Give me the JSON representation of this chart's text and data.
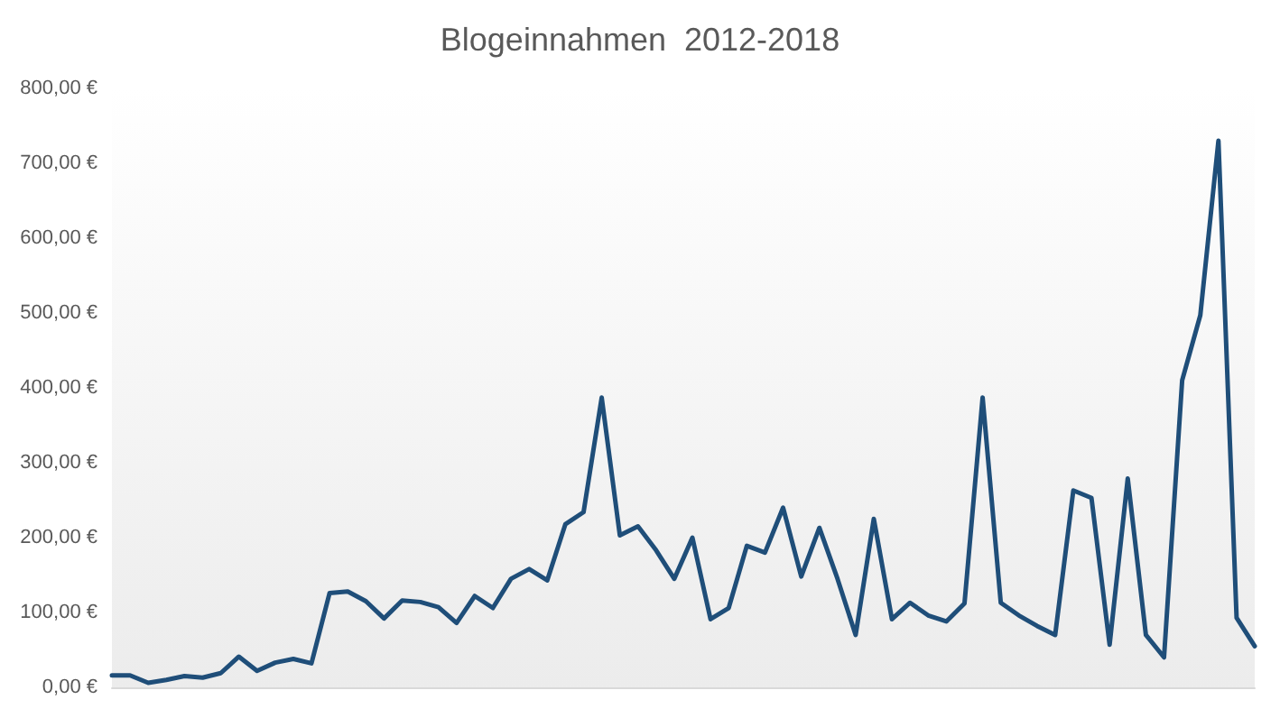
{
  "chart_data": {
    "type": "line",
    "title": "Blogeinnahmen  2012-2018",
    "categories": [
      null,
      null,
      null,
      null,
      null,
      null,
      null,
      null,
      null,
      null,
      null,
      null,
      null,
      null,
      null,
      null,
      null,
      null,
      null,
      null,
      null,
      null,
      null,
      null,
      null,
      null,
      null,
      null,
      null,
      null,
      null,
      null,
      null,
      null,
      null,
      null,
      null,
      null,
      null,
      null,
      null,
      null,
      null,
      null,
      null,
      null,
      null,
      null,
      null,
      null,
      null,
      null,
      null,
      null,
      null,
      null,
      null,
      null,
      null,
      null,
      null,
      null,
      null,
      null
    ],
    "series": [
      {
        "color": "#1f4e79",
        "values": [
          16,
          16,
          6,
          10,
          15,
          13,
          19,
          41,
          22,
          33,
          38,
          32,
          126,
          128,
          115,
          92,
          116,
          114,
          107,
          86,
          122,
          106,
          145,
          158,
          143,
          218,
          234,
          387,
          203,
          215,
          183,
          145,
          200,
          91,
          106,
          189,
          180,
          240,
          148,
          213,
          145,
          70,
          225,
          91,
          113,
          96,
          88,
          112,
          387,
          113,
          96,
          82,
          70,
          263,
          253,
          57,
          279,
          70,
          40,
          410,
          497,
          730,
          93,
          55
        ]
      }
    ],
    "ylim": [
      0,
      800
    ],
    "yticks": [
      {
        "value": 0,
        "label": "0,00 €"
      },
      {
        "value": 100,
        "label": "100,00 €"
      },
      {
        "value": 200,
        "label": "200,00 €"
      },
      {
        "value": 300,
        "label": "300,00 €"
      },
      {
        "value": 400,
        "label": "400,00 €"
      },
      {
        "value": 500,
        "label": "500,00 €"
      },
      {
        "value": 600,
        "label": "600,00 €"
      },
      {
        "value": 700,
        "label": "700,00 €"
      },
      {
        "value": 800,
        "label": "800,00 €"
      }
    ],
    "grid": false,
    "marker": "none",
    "line_style": "solid"
  }
}
